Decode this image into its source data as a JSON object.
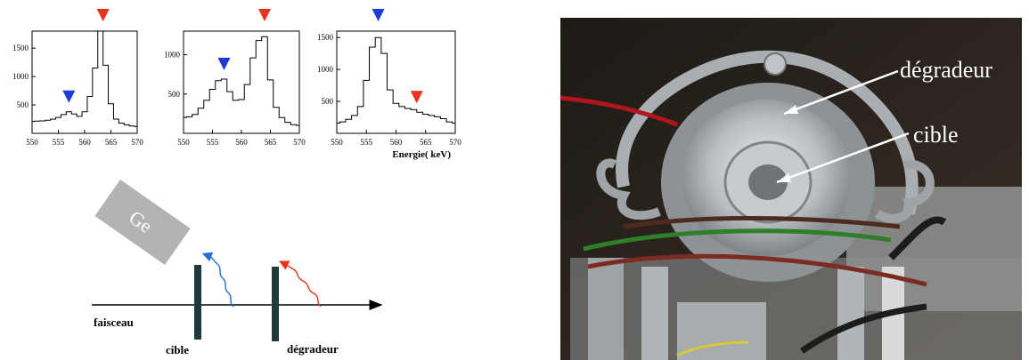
{
  "colors": {
    "blue": "#1f3bd6",
    "red": "#e8321e",
    "target": "#1f3a3a",
    "detector": "#b3b3b3",
    "photo_bg": "#2a2420",
    "metal": "#b9bec3"
  },
  "charts": [
    {
      "type": "line",
      "x_ticks": [
        "550",
        "555",
        "560",
        "565",
        "570"
      ],
      "y_ticks": [
        "500",
        "1000",
        "1500"
      ],
      "ylim": [
        0,
        1800
      ],
      "xlim": [
        550,
        570
      ],
      "xlabel": "",
      "markers": [
        {
          "color": "red",
          "x": 563.5
        },
        {
          "color": "blue",
          "x": 557
        }
      ],
      "x": [
        550,
        551,
        552,
        553,
        554,
        555,
        556,
        557,
        558,
        559,
        560,
        561,
        562,
        563,
        564,
        565,
        566,
        567,
        568,
        569,
        570
      ],
      "values": [
        210,
        215,
        220,
        230,
        250,
        280,
        330,
        380,
        340,
        300,
        380,
        650,
        1150,
        1800,
        1200,
        520,
        250,
        180,
        150,
        130,
        120
      ]
    },
    {
      "type": "line",
      "x_ticks": [
        "550",
        "555",
        "560",
        "565",
        "570"
      ],
      "y_ticks": [
        "500",
        "1000"
      ],
      "ylim": [
        0,
        1300
      ],
      "xlim": [
        550,
        570
      ],
      "xlabel": "",
      "markers": [
        {
          "color": "red",
          "x": 564
        },
        {
          "color": "blue",
          "x": 557
        }
      ],
      "x": [
        550,
        551,
        552,
        553,
        554,
        555,
        556,
        557,
        558,
        559,
        560,
        561,
        562,
        563,
        564,
        565,
        566,
        567,
        568,
        569,
        570
      ],
      "values": [
        200,
        210,
        240,
        320,
        420,
        560,
        670,
        690,
        530,
        420,
        430,
        620,
        960,
        1180,
        1230,
        680,
        330,
        200,
        140,
        110,
        100
      ]
    },
    {
      "type": "line",
      "x_ticks": [
        "550",
        "555",
        "560",
        "565",
        "570"
      ],
      "y_ticks": [
        "500",
        "1000",
        "1500"
      ],
      "ylim": [
        0,
        1600
      ],
      "xlim": [
        550,
        570
      ],
      "xlabel": "Energie( keV)",
      "markers": [
        {
          "color": "blue",
          "x": 557
        },
        {
          "color": "red",
          "x": 563.5
        }
      ],
      "x": [
        550,
        551,
        552,
        553,
        554,
        555,
        556,
        557,
        558,
        559,
        560,
        561,
        562,
        563,
        564,
        565,
        566,
        567,
        568,
        569,
        570
      ],
      "values": [
        160,
        180,
        220,
        280,
        420,
        830,
        1350,
        1500,
        1250,
        680,
        470,
        420,
        390,
        370,
        330,
        300,
        280,
        260,
        230,
        180,
        160
      ]
    }
  ],
  "schematic": {
    "detector_label": "Ge",
    "beam_label": "faisceau",
    "target_label": "cible",
    "degrader_label": "dégradeur"
  },
  "photo": {
    "label_degrader": "dégradeur",
    "label_target": "cible"
  }
}
